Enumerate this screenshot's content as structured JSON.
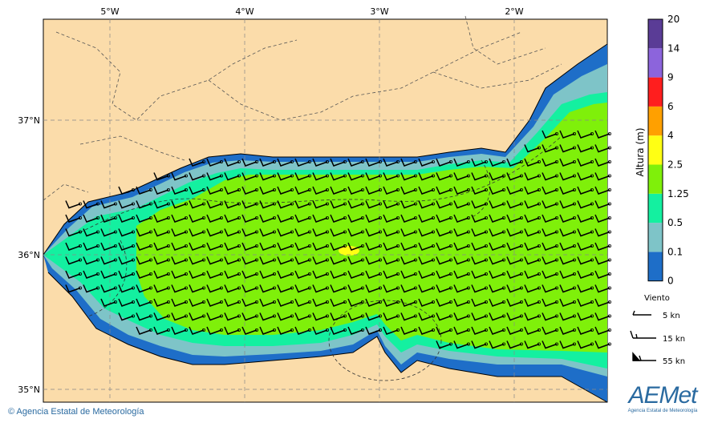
{
  "map": {
    "lon_ticks": [
      "5°W",
      "4°W",
      "3°W",
      "2°W"
    ],
    "lat_ticks": [
      "37°N",
      "36°N",
      "35°N"
    ],
    "colors": {
      "land": "#fbdcaa",
      "wave_0_0.1": "#1e6ec8",
      "wave_0.1_0.5": "#7ec4c8",
      "wave_0.5_1.25": "#14f0a0",
      "wave_1.25_2.5": "#7ff00a",
      "wave_2.5_4": "#ffff14"
    },
    "wind_barb_description": "W wind barbs, ~15 kn, over sea"
  },
  "legend": {
    "title": "Altura (m)",
    "levels": [
      "0",
      "0.1",
      "0.5",
      "1.25",
      "2.5",
      "4",
      "6",
      "9",
      "14",
      "20"
    ],
    "colors": [
      "#1e6ec8",
      "#7ec4c8",
      "#14f0a0",
      "#7ff00a",
      "#ffff14",
      "#ffa000",
      "#ff1e1e",
      "#8c64dc",
      "#5a3c96"
    ]
  },
  "wind_legend": {
    "title": "Viento",
    "items": [
      "5 kn",
      "15 kn",
      "55 kn"
    ]
  },
  "footer": {
    "credit": "© Agencia Estatal de Meteorología",
    "logo_text": "AEMet",
    "logo_sub": "Agencia Estatal de Meteorología"
  }
}
